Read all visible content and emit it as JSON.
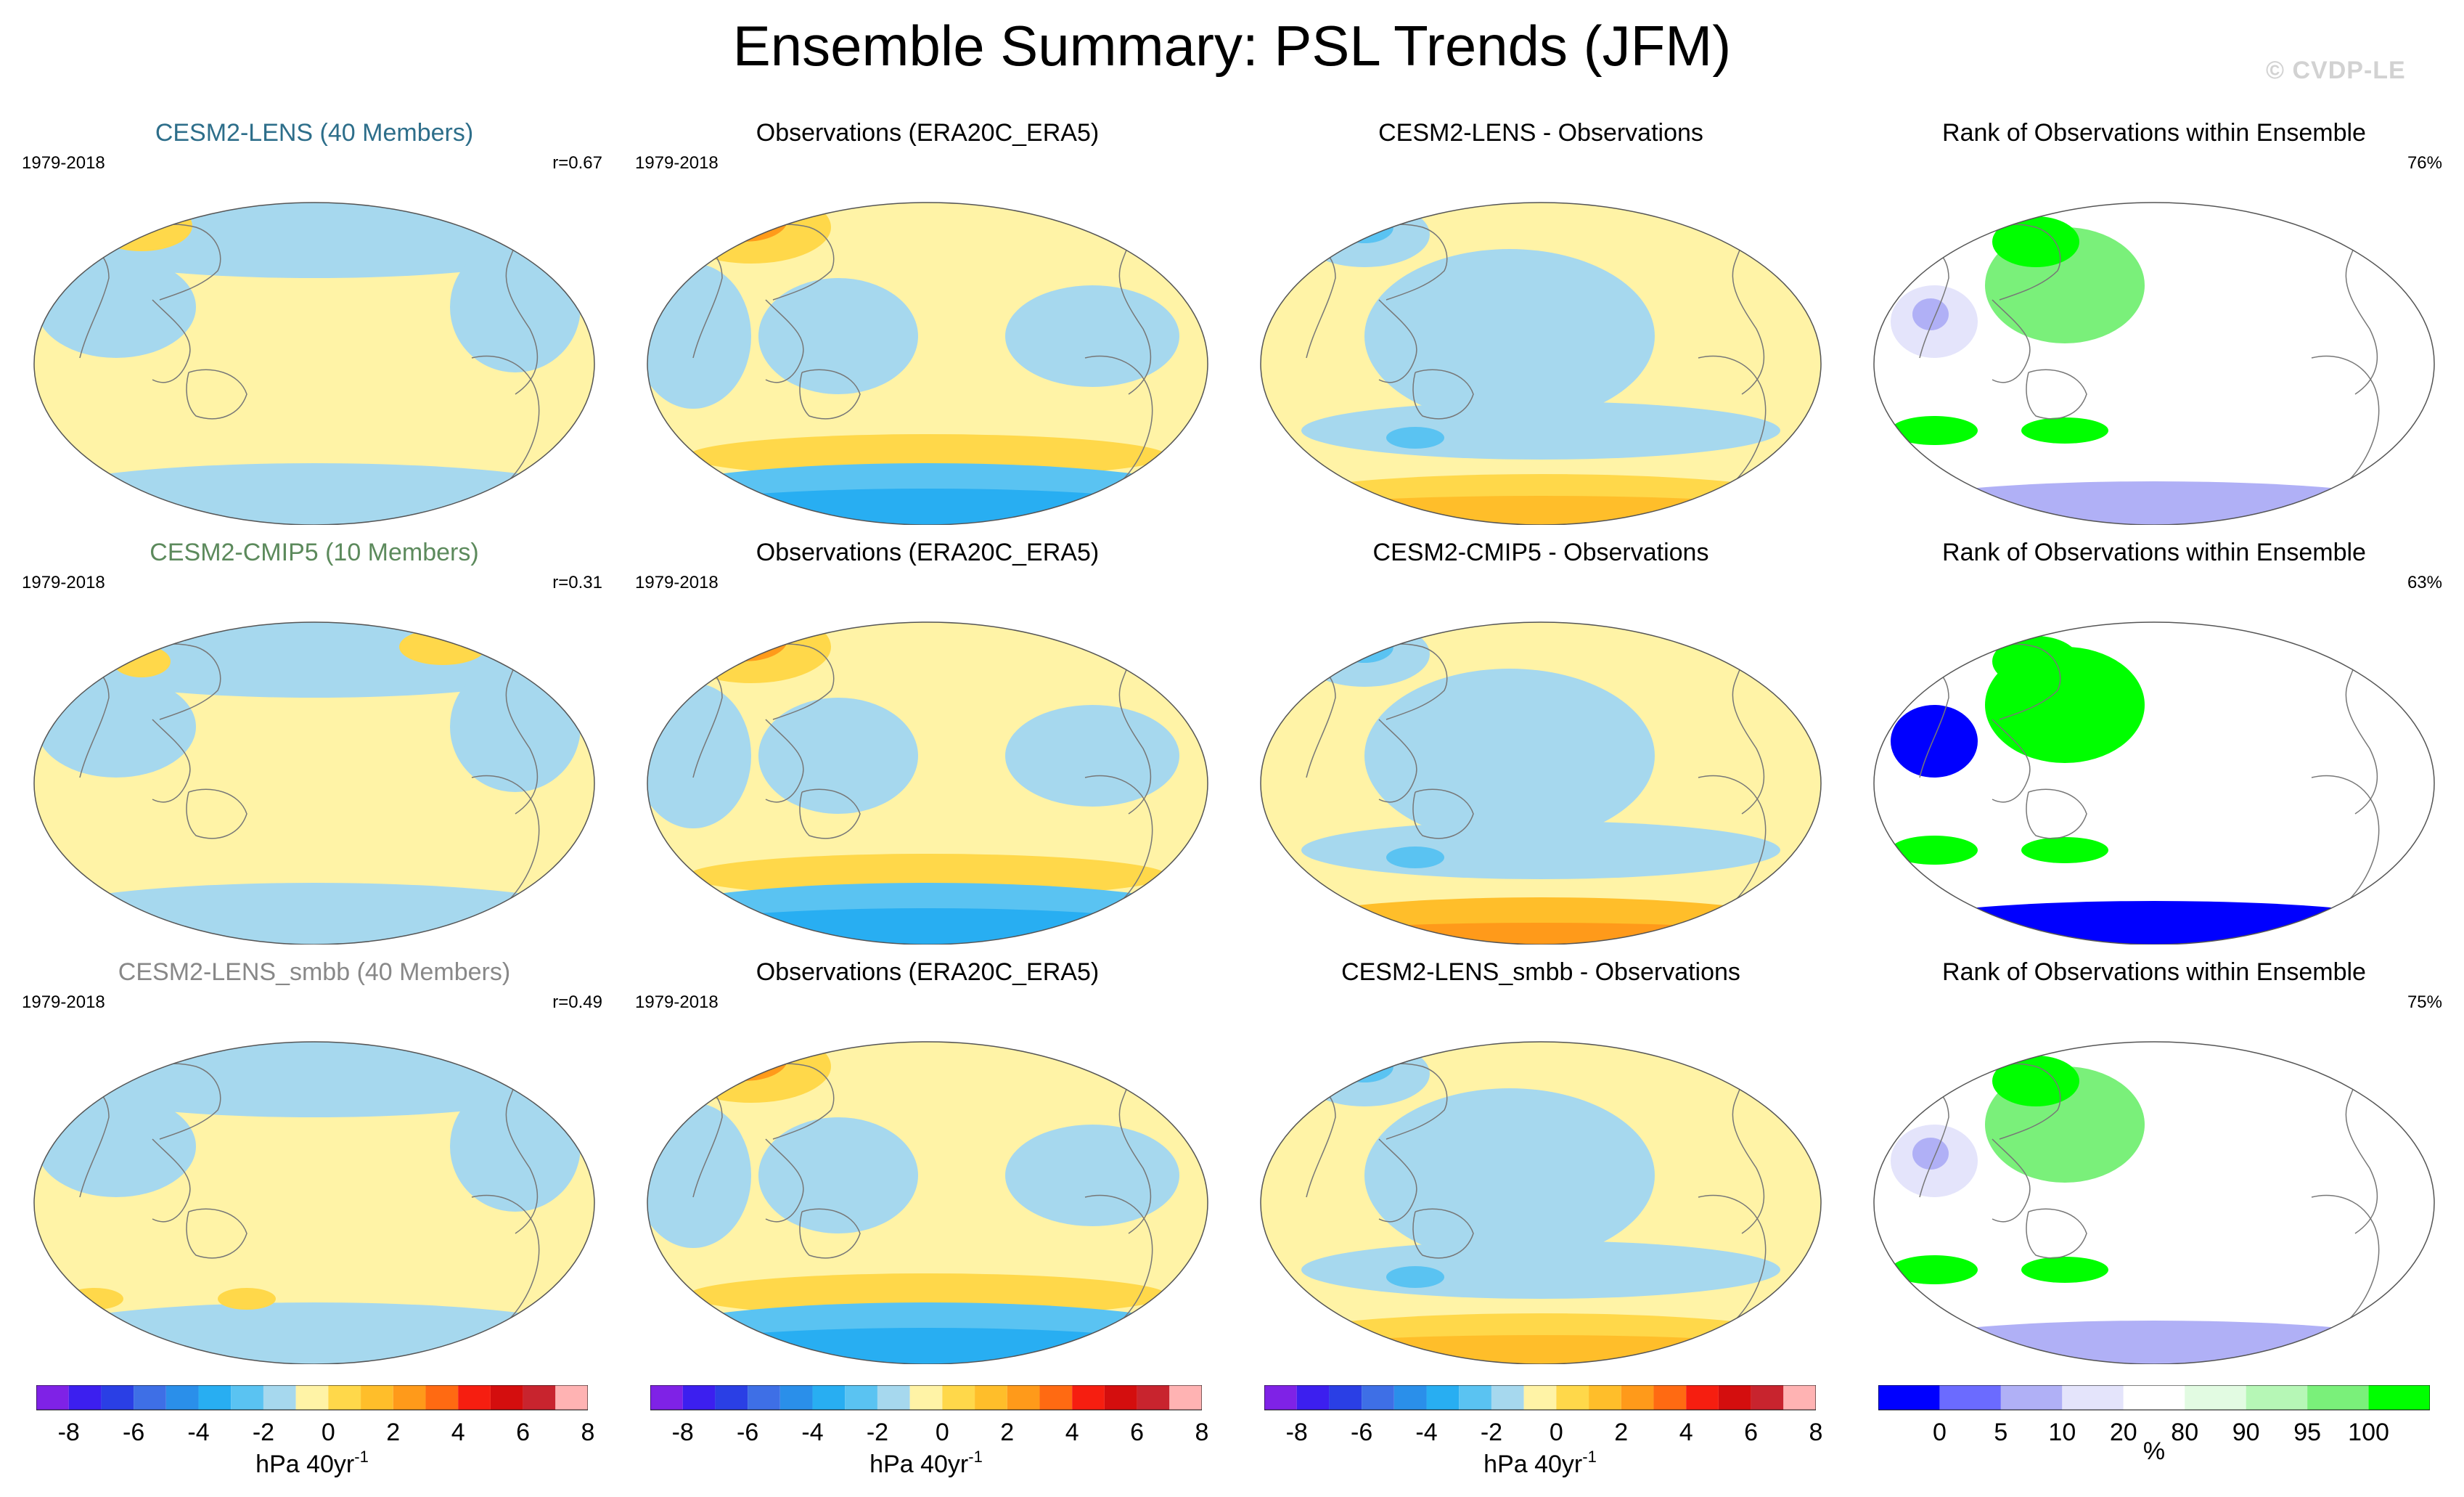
{
  "title": "Ensemble Summary: PSL Trends (JFM)",
  "watermark": "© CVDP-LE",
  "colors": {
    "neg_light": "#a6d8ee",
    "pos_light": "#fff3a6",
    "diverging_palette": [
      "#7f22e6",
      "#3c1fef",
      "#2a3fe5",
      "#3e6fe6",
      "#2a8fea",
      "#28aef2",
      "#5ac3f2",
      "#a6d8ee",
      "#fff3a6",
      "#ffd84a",
      "#ffbe2a",
      "#ff9a1a",
      "#ff6a12",
      "#f61e10",
      "#d40e0e",
      "#c8242e",
      "#ffb3b3"
    ],
    "rank_palette": [
      "#0000ff",
      "#6b6bff",
      "#b0b0f6",
      "#e4e4fb",
      "#ffffff",
      "#e2fbe2",
      "#b6f7b6",
      "#7af07a",
      "#00ff00"
    ],
    "title_lens": "#2d6e8a",
    "title_cmip5": "#5c8a5c",
    "title_smbb": "#888888"
  },
  "rows": [
    {
      "model_title": "CESM2-LENS (40 Members)",
      "period": "1979-2018",
      "correlation": "r=0.67",
      "obs_title": "Observations (ERA20C_ERA5)",
      "obs_period": "1979-2018",
      "diff_title": "CESM2-LENS - Observations",
      "rank_title": "Rank of Observations within Ensemble",
      "rank_percent": "76%"
    },
    {
      "model_title": "CESM2-CMIP5 (10 Members)",
      "period": "1979-2018",
      "correlation": "r=0.31",
      "obs_title": "Observations (ERA20C_ERA5)",
      "obs_period": "1979-2018",
      "diff_title": "CESM2-CMIP5 - Observations",
      "rank_title": "Rank of Observations within Ensemble",
      "rank_percent": "63%"
    },
    {
      "model_title": "CESM2-LENS_smbb (40 Members)",
      "period": "1979-2018",
      "correlation": "r=0.49",
      "obs_title": "Observations (ERA20C_ERA5)",
      "obs_period": "1979-2018",
      "diff_title": "CESM2-LENS_smbb - Observations",
      "rank_title": "Rank of Observations within Ensemble",
      "rank_percent": "75%"
    }
  ],
  "colorbars": {
    "psl_ticks": [
      "-8",
      "-6",
      "-4",
      "-2",
      "0",
      "2",
      "4",
      "6",
      "8"
    ],
    "psl_unit": "hPa 40yr",
    "psl_unit_exp": "-1",
    "rank_ticks": [
      "0",
      "5",
      "10",
      "20",
      "80",
      "90",
      "95",
      "100"
    ],
    "rank_unit": "%"
  }
}
